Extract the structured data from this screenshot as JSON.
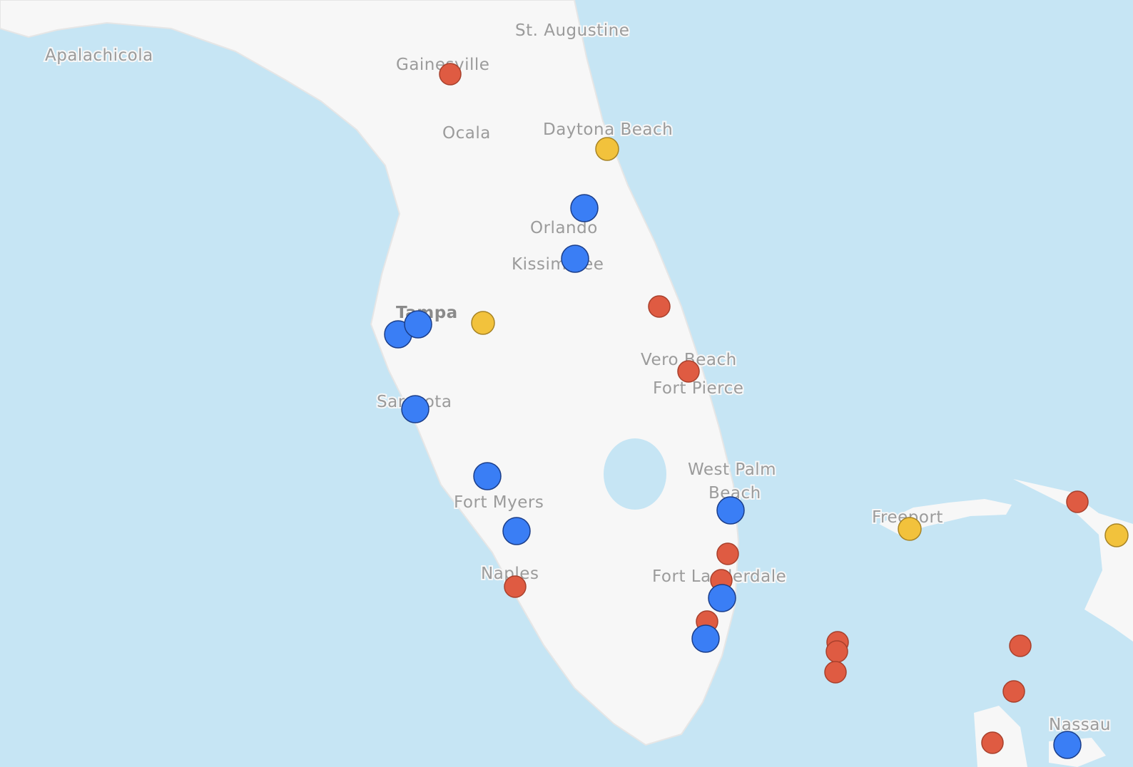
{
  "map": {
    "labels": [
      "St. Augustine",
      "Apalachicola",
      "Gainesville",
      "Ocala",
      "Daytona Beach",
      "Orlando",
      "Kissimmee",
      "Tampa",
      "Vero Beach",
      "Fort Pierce",
      "Sarasota",
      "West Palm",
      "Beach",
      "Freeport",
      "Fort Myers",
      "Naples",
      "Fort Lauderdale",
      "Nassau"
    ]
  }
}
